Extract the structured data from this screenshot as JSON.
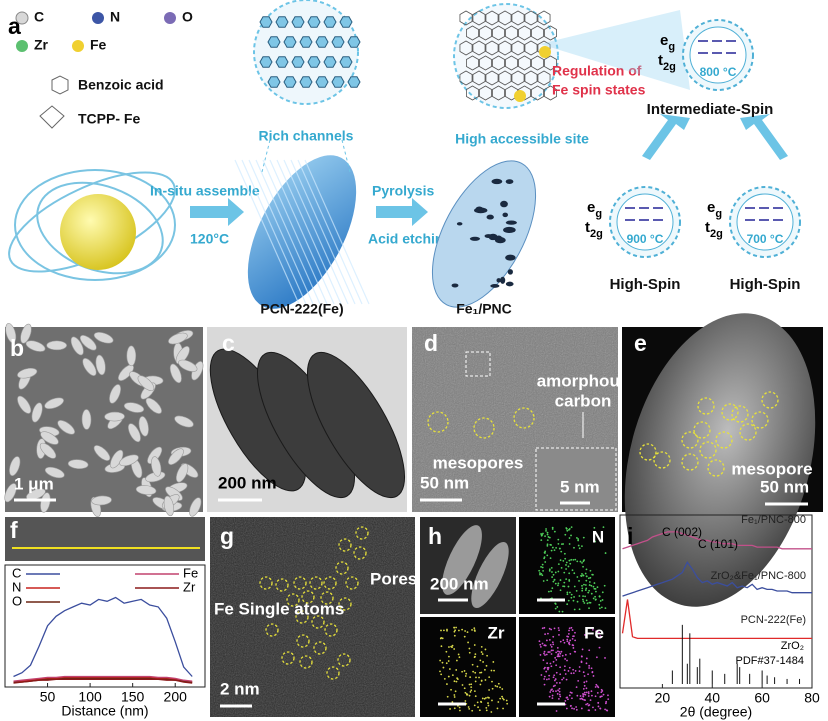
{
  "panel_a": {
    "label": "a",
    "legend": [
      "C",
      "N",
      "O",
      "Zr",
      "Fe"
    ],
    "ligands": [
      "Benzoic acid",
      "TCPP- Fe"
    ],
    "step1": [
      "In-situ assemble",
      "120°C"
    ],
    "channels": "Rich channels",
    "mof_name": "PCN-222(Fe)",
    "step2": [
      "Pyrolysis",
      "Acid etching"
    ],
    "site": "High accessible site",
    "regulation": [
      "Regulation of",
      "Fe spin states"
    ],
    "product": "Fe₁/PNC",
    "spin_states": [
      {
        "name": "Intermediate-Spin",
        "temperature": "800 °C",
        "e_g": [
          "e",
          "g"
        ],
        "t_2g": [
          "t",
          "2g"
        ]
      },
      {
        "name": "High-Spin",
        "temperature": "900 °C",
        "e_g": [
          "e",
          "g"
        ],
        "t_2g": [
          "t",
          "2g"
        ]
      },
      {
        "name": "High-Spin",
        "temperature": "700 °C",
        "e_g": [
          "e",
          "g"
        ],
        "t_2g": [
          "t",
          "2g"
        ]
      }
    ]
  },
  "panel_b": {
    "label": "b",
    "scale_bar": "1 μm"
  },
  "panel_c": {
    "label": "c",
    "scale_bar": "200 nm"
  },
  "panel_d": {
    "label": "d",
    "annotation": [
      "amorphous",
      "carbon"
    ],
    "mesopores": "mesopores",
    "scale_bar": "50 nm",
    "inset_scale_bar": "5 nm"
  },
  "panel_e": {
    "label": "e",
    "annotation": "mesopore",
    "scale_bar": "50 nm"
  },
  "panel_f": {
    "label": "f",
    "chart_data": {
      "type": "line",
      "x_label": "Distance (nm)",
      "x": [
        10,
        20,
        30,
        40,
        50,
        60,
        70,
        80,
        90,
        100,
        110,
        120,
        130,
        140,
        150,
        160,
        170,
        180,
        190,
        200,
        210,
        220
      ],
      "series": [
        {
          "name": "C",
          "color": "#3b4e9e",
          "values": [
            8,
            12,
            20,
            40,
            62,
            72,
            78,
            82,
            86,
            84,
            90,
            88,
            92,
            86,
            88,
            90,
            84,
            82,
            70,
            45,
            18,
            8
          ]
        },
        {
          "name": "N",
          "color": "#c8241f",
          "values": [
            2,
            3,
            4,
            5,
            6,
            6,
            7,
            7,
            7,
            7,
            7,
            7,
            7,
            7,
            7,
            7,
            7,
            6,
            6,
            5,
            3,
            2
          ]
        },
        {
          "name": "O",
          "color": "#6b2514",
          "values": [
            2,
            2,
            3,
            4,
            5,
            5,
            6,
            6,
            6,
            6,
            6,
            6,
            6,
            6,
            6,
            6,
            6,
            5,
            5,
            4,
            3,
            2
          ]
        },
        {
          "name": "Fe",
          "color": "#c2426f",
          "values": [
            3,
            4,
            5,
            6,
            7,
            7,
            8,
            8,
            8,
            8,
            8,
            8,
            8,
            8,
            8,
            8,
            8,
            7,
            7,
            6,
            4,
            3
          ]
        },
        {
          "name": "Zr",
          "color": "#8b1a1a",
          "values": [
            1,
            2,
            3,
            4,
            4,
            5,
            5,
            5,
            5,
            5,
            5,
            5,
            5,
            5,
            5,
            5,
            5,
            5,
            4,
            4,
            2,
            1
          ]
        }
      ],
      "xlim": [
        0,
        235
      ],
      "ylim": [
        0,
        100
      ],
      "xticks": [
        50,
        100,
        150,
        200
      ]
    }
  },
  "panel_g": {
    "label": "g",
    "pores": "Pores",
    "atoms": "Fe Single atoms",
    "scale_bar": "2 nm"
  },
  "panel_h": {
    "label": "h",
    "scale_bar": "200 nm",
    "maps": [
      "N",
      "Zr",
      "Fe"
    ]
  },
  "panel_i": {
    "label": "i",
    "chart_data": {
      "type": "line",
      "x_label": "2θ (degree)",
      "x": [
        4,
        6,
        8,
        10,
        12,
        14,
        16,
        18,
        20,
        22,
        24,
        26,
        28,
        30,
        32,
        34,
        36,
        38,
        40,
        42,
        44,
        46,
        48,
        50,
        52,
        54,
        56,
        58,
        60,
        62,
        64,
        66,
        68,
        70,
        72,
        74,
        76,
        78,
        80
      ],
      "series": [
        {
          "name": "Fe₁/PNC-800",
          "color": "#c2508a",
          "values": [
            80,
            81,
            82,
            83,
            84,
            85,
            87,
            88,
            89,
            90,
            90,
            90,
            89,
            88,
            87,
            86,
            85,
            85,
            84,
            84,
            83,
            83,
            83,
            82,
            82,
            82,
            82,
            81,
            81,
            81,
            81,
            81,
            80,
            80,
            80,
            80,
            80,
            80,
            80
          ]
        },
        {
          "name": "ZrO₂&Fe₁/PNC-800",
          "color": "#3b4e9e",
          "values": [
            52,
            53,
            54,
            55,
            56,
            57,
            58,
            59,
            60,
            61,
            62,
            64,
            66,
            72,
            68,
            63,
            60,
            61,
            59,
            60,
            59,
            58,
            60,
            57,
            58,
            57,
            59,
            56,
            57,
            56,
            56,
            55,
            55,
            55,
            54,
            54,
            54,
            54,
            54
          ]
        },
        {
          "name": "PCN-222(Fe)",
          "color": "#e02a2a",
          "values": [
            30,
            50,
            28,
            27,
            27,
            27,
            27,
            27,
            27,
            27,
            27,
            27,
            27,
            27,
            27,
            27,
            27,
            27,
            27,
            27,
            27,
            27,
            27,
            27,
            27,
            27,
            27,
            27,
            27,
            27,
            27,
            27,
            27,
            27,
            27,
            27,
            27,
            27,
            27
          ]
        }
      ],
      "reference": {
        "name": [
          "ZrO₂",
          "PDF#37-1484"
        ],
        "color": "#111111",
        "x": [
          24,
          28,
          30,
          31,
          34,
          35,
          40,
          45,
          50,
          51,
          55,
          60,
          62,
          65,
          70,
          75
        ],
        "values": [
          8,
          35,
          12,
          30,
          10,
          15,
          8,
          6,
          12,
          10,
          6,
          8,
          5,
          4,
          3,
          3
        ]
      },
      "annotations": [
        "C (002)",
        "C (101)"
      ],
      "xlim": [
        3,
        80
      ],
      "ylim": [
        0,
        100
      ],
      "xticks": [
        20,
        40,
        60,
        80
      ]
    }
  }
}
